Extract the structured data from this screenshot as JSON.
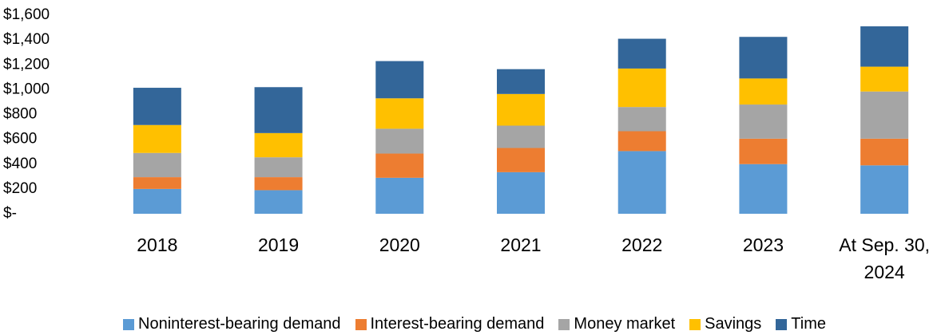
{
  "chart_data": {
    "type": "stacked_bar",
    "categories": [
      "2018",
      "2019",
      "2020",
      "2021",
      "2022",
      "2023",
      "At Sep. 30, 2024"
    ],
    "series": [
      {
        "name": "Noninterest-bearing demand",
        "color": "#5b9bd5",
        "values": [
          200,
          190,
          290,
          335,
          505,
          400,
          390
        ]
      },
      {
        "name": "Interest-bearing demand",
        "color": "#ed7d31",
        "values": [
          95,
          105,
          195,
          195,
          160,
          205,
          215
        ]
      },
      {
        "name": "Money market",
        "color": "#a5a5a5",
        "values": [
          195,
          160,
          200,
          180,
          195,
          275,
          380
        ]
      },
      {
        "name": "Savings",
        "color": "#ffc000",
        "values": [
          225,
          195,
          245,
          255,
          310,
          210,
          200
        ]
      },
      {
        "name": "Time",
        "color": "#336699",
        "values": [
          300,
          370,
          300,
          200,
          240,
          335,
          325
        ]
      }
    ],
    "ylim": [
      0,
      1600
    ],
    "yticks": [
      {
        "value": 0,
        "label": "$-"
      },
      {
        "value": 200,
        "label": "$200"
      },
      {
        "value": 400,
        "label": "$400"
      },
      {
        "value": 600,
        "label": "$600"
      },
      {
        "value": 800,
        "label": "$800"
      },
      {
        "value": 1000,
        "label": "$1,000"
      },
      {
        "value": 1200,
        "label": "$1,200"
      },
      {
        "value": 1400,
        "label": "$1,400"
      },
      {
        "value": 1600,
        "label": "$1,600"
      }
    ],
    "legend": "bottom"
  }
}
